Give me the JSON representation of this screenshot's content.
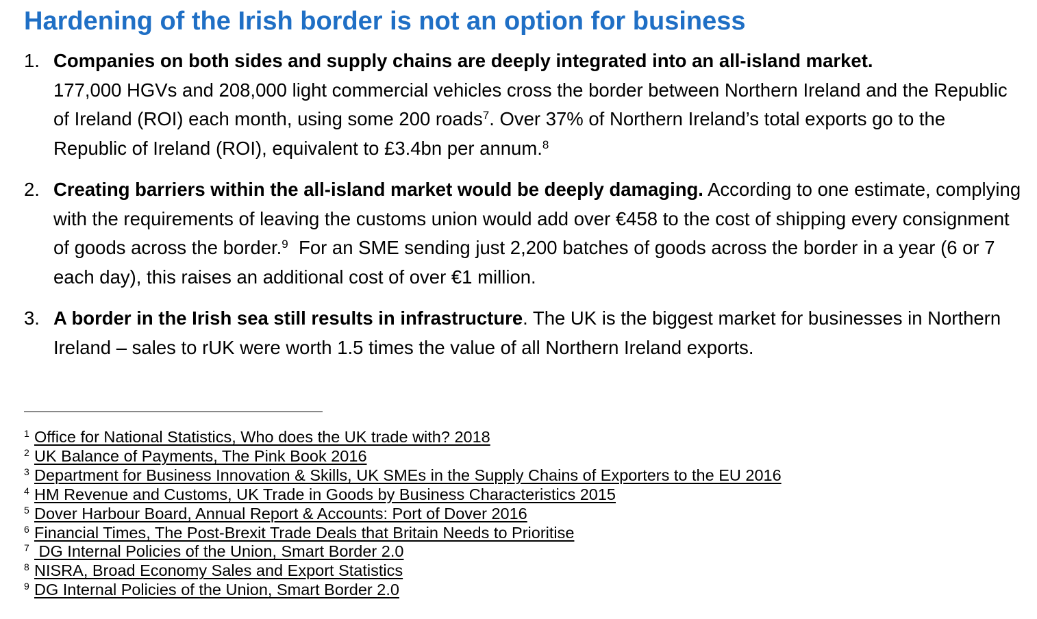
{
  "title": "Hardening of the Irish border is not an option for business",
  "points": [
    {
      "num": "1.",
      "lead": "Companies on both sides and supply chains are deeply integrated into an all-island market.",
      "text_a": "177,000 HGVs and 208,000 light commercial vehicles cross the border between Northern Ireland and the Republic of Ireland (ROI) each month, using some 200 roads",
      "sup_a": "7",
      "text_b": ". Over 37% of Northern Ireland’s total exports go to the Republic of Ireland (ROI), equivalent to £3.4bn per annum.",
      "sup_b": "8"
    },
    {
      "num": "2.",
      "lead": "Creating barriers within the all-island market would be deeply damaging.",
      "text_a": " According to one estimate, complying with the requirements of leaving the customs union would add over €458 to the cost of shipping every consignment of goods across the border.",
      "sup_a": "9",
      "text_b": "  For an SME sending just 2,200 batches of goods across the border in a year (6 or 7 each day), this raises an additional cost of over €1 million."
    },
    {
      "num": "3.",
      "lead": "A border in the Irish sea still results in infrastructure",
      "text_a": ". The UK is the biggest market for businesses in Northern Ireland – sales to rUK were worth 1.5 times the value of all Northern Ireland exports."
    }
  ],
  "footnotes": [
    {
      "n": "1",
      "text": "Office for National Statistics, Who does the UK trade with? 2018"
    },
    {
      "n": "2",
      "text": "UK Balance of Payments, The Pink Book 2016"
    },
    {
      "n": "3",
      "text": "Department for Business Innovation & Skills, UK SMEs in the Supply Chains of Exporters to the EU 2016"
    },
    {
      "n": "4",
      "text": "HM Revenue and Customs, UK Trade in Goods by Business Characteristics 2015"
    },
    {
      "n": "5",
      "text": "Dover Harbour Board, Annual Report & Accounts: Port of Dover 2016"
    },
    {
      "n": "6",
      "text": "Financial Times, The Post-Brexit Trade Deals that Britain Needs to Prioritise"
    },
    {
      "n": "7",
      "text": " DG Internal Policies of the Union, Smart Border 2.0"
    },
    {
      "n": "8",
      "text": "NISRA, Broad Economy Sales and Export Statistics"
    },
    {
      "n": "9",
      "text": "DG Internal Policies of the Union, Smart Border 2.0"
    }
  ],
  "colors": {
    "title": "#1f6fc5",
    "text": "#000000"
  }
}
